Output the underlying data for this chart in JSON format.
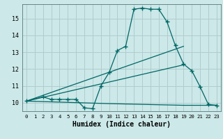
{
  "title": "",
  "xlabel": "Humidex (Indice chaleur)",
  "background_color": "#cce8e8",
  "grid_color": "#b0cccc",
  "line_color": "#006666",
  "xlim": [
    -0.5,
    23.5
  ],
  "ylim": [
    9.5,
    15.85
  ],
  "yticks": [
    10,
    11,
    12,
    13,
    14,
    15
  ],
  "xticks": [
    0,
    1,
    2,
    3,
    4,
    5,
    6,
    7,
    8,
    9,
    10,
    11,
    12,
    13,
    14,
    15,
    16,
    17,
    18,
    19,
    20,
    21,
    22,
    23
  ],
  "series1_x": [
    0,
    2,
    3,
    4,
    5,
    6,
    7,
    8,
    9,
    10,
    11,
    12,
    13,
    14,
    15,
    16,
    17,
    18,
    19,
    20,
    21,
    22,
    23
  ],
  "series1_y": [
    10.1,
    10.35,
    10.2,
    10.2,
    10.2,
    10.2,
    9.7,
    9.65,
    11.0,
    11.8,
    13.1,
    13.35,
    15.55,
    15.62,
    15.55,
    15.55,
    14.8,
    13.4,
    12.3,
    11.9,
    10.95,
    9.9,
    9.85
  ],
  "series2_x": [
    0,
    19
  ],
  "series2_y": [
    10.1,
    13.35
  ],
  "series3_x": [
    0,
    19
  ],
  "series3_y": [
    10.1,
    12.25
  ],
  "series4_x": [
    0,
    10,
    19,
    23
  ],
  "series4_y": [
    10.1,
    9.95,
    9.85,
    9.85
  ]
}
